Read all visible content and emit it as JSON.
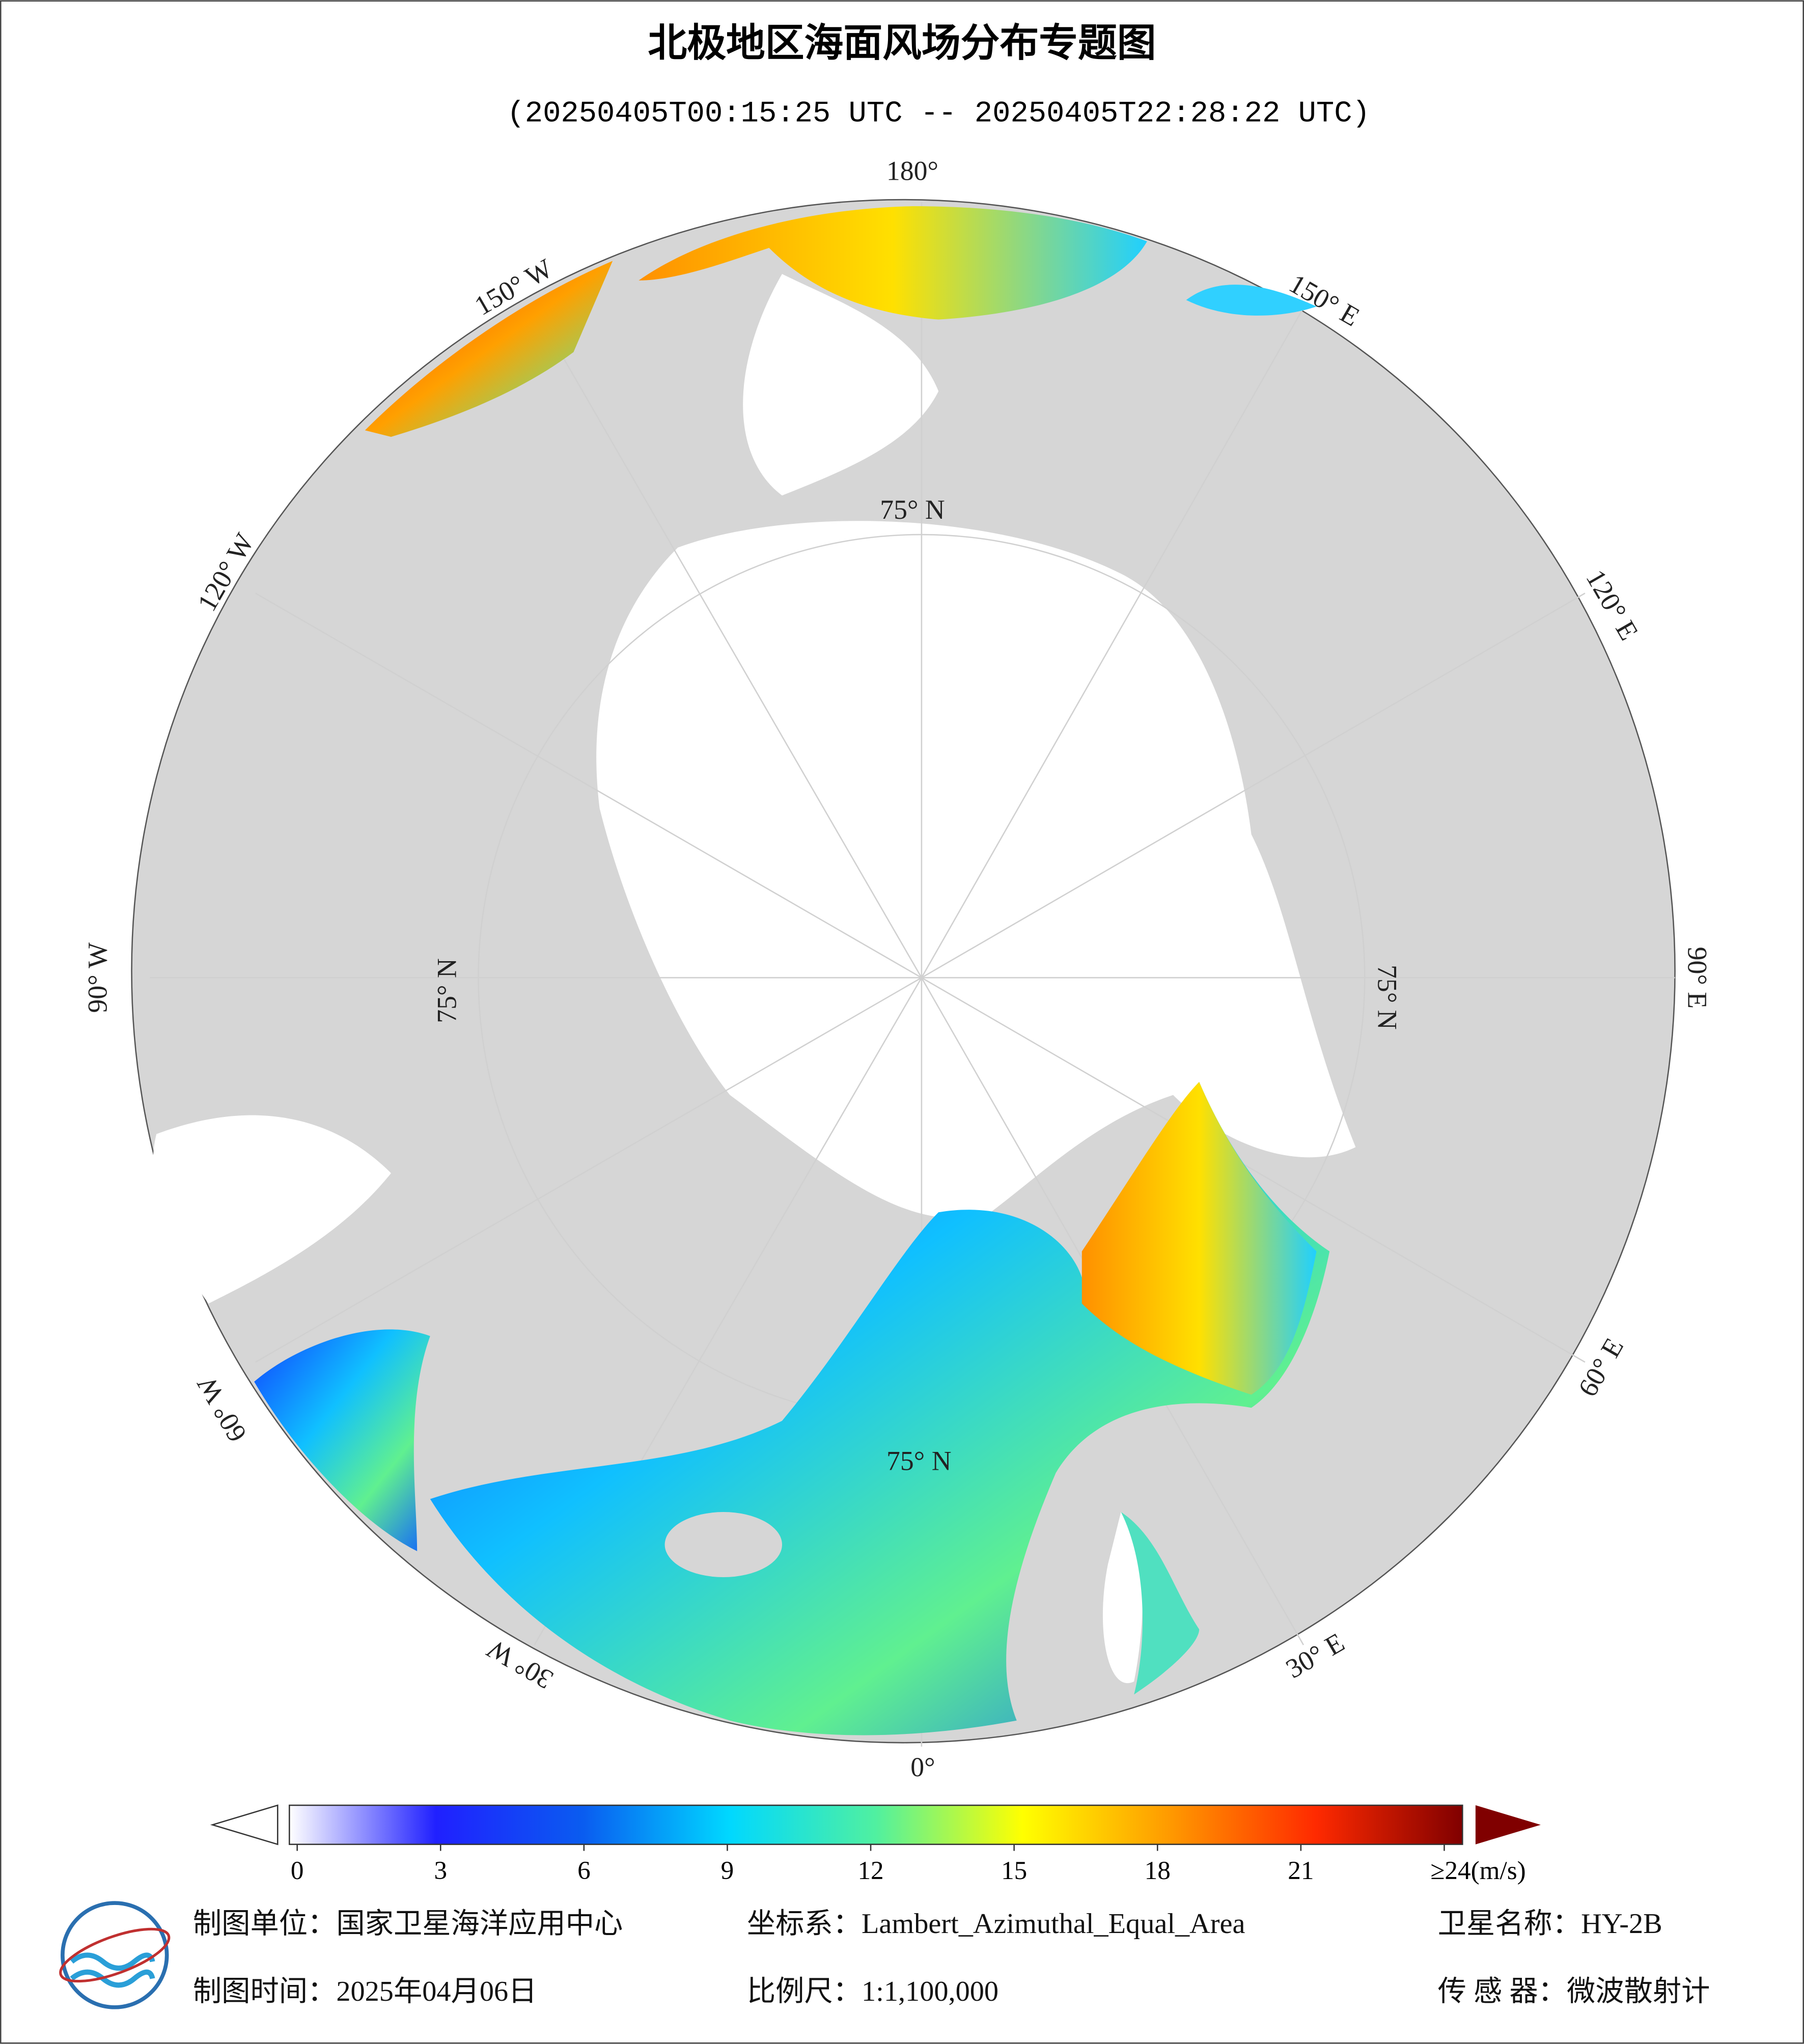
{
  "title": "北极地区海面风场分布专题图",
  "subtitle": "(20250405T00:15:25 UTC -- 20250405T22:28:22 UTC)",
  "longitude_labels": [
    "180°",
    "150° W",
    "120° W",
    "90° W",
    "60° W",
    "30° W",
    "0°",
    "30° E",
    "60° E",
    "90° E",
    "120° E",
    "150° E"
  ],
  "latitude_labels": [
    "75° N",
    "75° N",
    "75° N",
    "75° N"
  ],
  "colorbar": {
    "lim": [
      0,
      24
    ],
    "ticks": [
      0,
      3,
      6,
      9,
      12,
      15,
      18,
      21,
      {
        "value": 24,
        "label": "≥24(m/s)"
      }
    ],
    "colors": [
      "#ffffff",
      "#2020ff",
      "#0a5cf0",
      "#00d8ff",
      "#50f0a0",
      "#ffff00",
      "#ff9a00",
      "#ff2a00",
      "#800000"
    ]
  },
  "footer": {
    "unit": "制图单位：国家卫星海洋应用中心",
    "date": "制图时间：2025年04月06日",
    "crs": "坐标系：Lambert_Azimuthal_Equal_Area",
    "scale": "比例尺：1:1,100,000",
    "satellite": "卫星名称：HY-2B",
    "sensor": "传 感 器：微波散射计"
  }
}
